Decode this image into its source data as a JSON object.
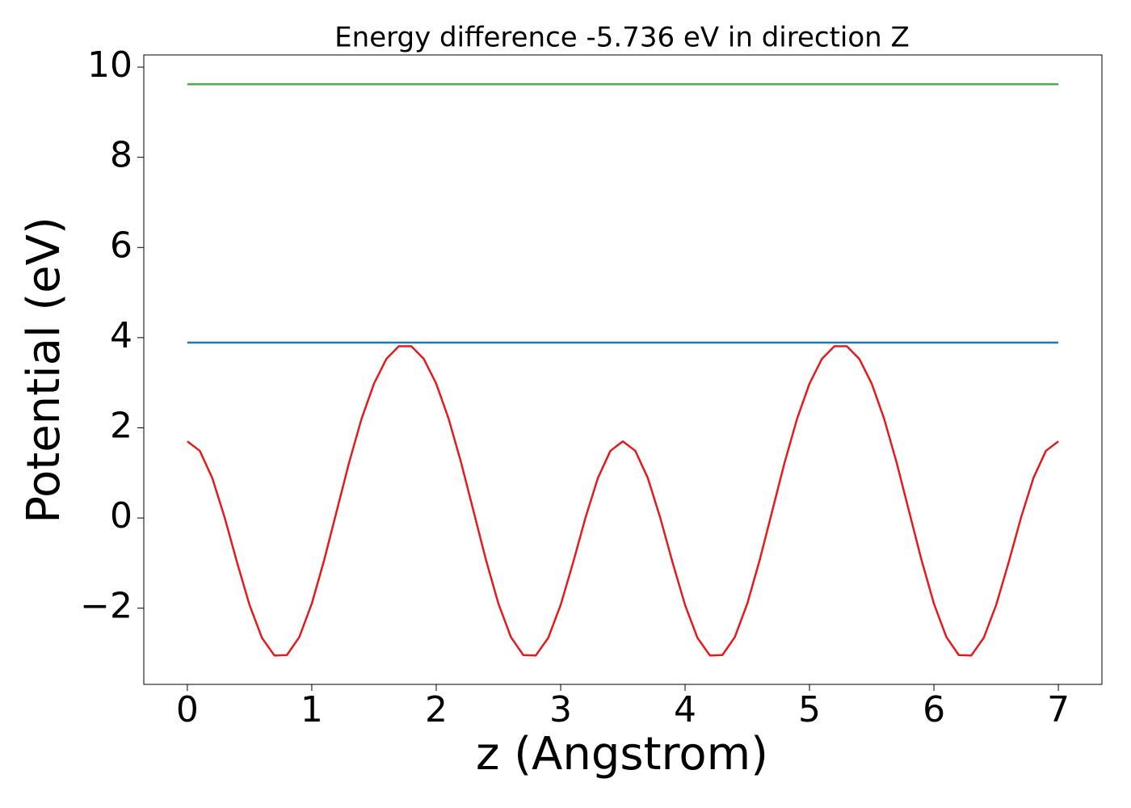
{
  "chart_data": {
    "type": "line",
    "title": "Energy difference -5.736 eV in direction Z",
    "xlabel": "z (Angstrom)",
    "ylabel": "Potential (eV)",
    "xlim": [
      -0.35,
      7.35
    ],
    "ylim": [
      -3.69,
      10.27
    ],
    "xticks": [
      0,
      1,
      2,
      3,
      4,
      5,
      6,
      7
    ],
    "yticks": [
      {
        "value": -2,
        "label": "−2"
      },
      0,
      2,
      4,
      6,
      8,
      10
    ],
    "grid": false,
    "series": [
      {
        "color": "#e41a1c",
        "x": [
          0,
          0.1,
          0.2,
          0.3,
          0.4,
          0.5,
          0.6,
          0.7,
          0.8,
          0.9,
          1.0,
          1.1,
          1.2,
          1.3,
          1.4,
          1.5,
          1.6,
          1.7,
          1.8,
          1.9,
          2.0,
          2.1,
          2.2,
          2.3,
          2.4,
          2.5,
          2.6,
          2.7,
          2.8,
          2.9,
          3.0,
          3.1,
          3.2,
          3.3,
          3.4,
          3.5,
          3.6,
          3.7,
          3.8,
          3.9,
          4.0,
          4.1,
          4.2,
          4.3,
          4.4,
          4.5,
          4.6,
          4.7,
          4.8,
          4.9,
          5.0,
          5.1,
          5.2,
          5.3,
          5.4,
          5.5,
          5.6,
          5.7,
          5.8,
          5.9,
          6.0,
          6.1,
          6.2,
          6.3,
          6.4,
          6.5,
          6.6,
          6.7,
          6.8,
          6.9,
          7.0
        ],
        "values": [
          1.7,
          1.49,
          0.89,
          0.01,
          -0.99,
          -1.93,
          -2.66,
          -3.05,
          -3.04,
          -2.64,
          -1.9,
          -0.93,
          0.15,
          1.23,
          2.2,
          2.98,
          3.53,
          3.81,
          3.81,
          3.53,
          2.98,
          2.2,
          1.23,
          0.15,
          -0.93,
          -1.9,
          -2.64,
          -3.04,
          -3.05,
          -2.66,
          -1.93,
          -0.99,
          0.01,
          0.89,
          1.49,
          1.7,
          1.49,
          0.89,
          0.01,
          -0.99,
          -1.93,
          -2.66,
          -3.05,
          -3.04,
          -2.64,
          -1.9,
          -0.93,
          0.15,
          1.23,
          2.2,
          2.98,
          3.53,
          3.81,
          3.81,
          3.53,
          2.98,
          2.2,
          1.23,
          0.15,
          -0.93,
          -1.9,
          -2.64,
          -3.04,
          -3.05,
          -2.66,
          -1.93,
          -0.99,
          0.01,
          0.89,
          1.49,
          1.7
        ]
      },
      {
        "color": "#1f77b4",
        "x": [
          0,
          7
        ],
        "values": [
          3.89,
          3.89
        ]
      },
      {
        "color": "#4daf4a",
        "x": [
          0,
          7
        ],
        "values": [
          9.62,
          9.62
        ]
      }
    ]
  }
}
